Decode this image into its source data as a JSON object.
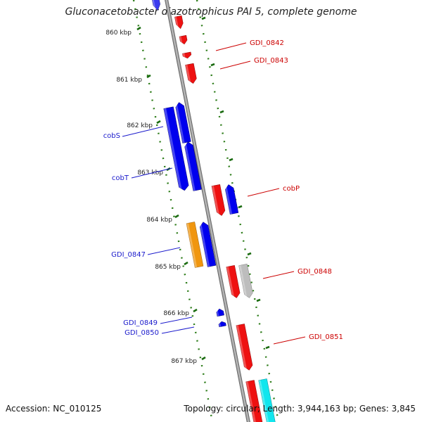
{
  "title": "Gluconacetobacter diazotrophicus PAI 5, complete genome",
  "footer": {
    "accession": "Accession: NC_010125",
    "topology": "Topology: circular; Length: 3,944,163 bp; Genes: 3,845"
  },
  "scale": {
    "ticks": [
      "860 kbp",
      "861 kbp",
      "862 kbp",
      "863 kbp",
      "864 kbp",
      "865 kbp",
      "866 kbp",
      "867 kbp"
    ]
  },
  "colors": {
    "backbone": "#8a8a8a",
    "ruler": "#2e7d1a",
    "forward_label": "#1a1acc",
    "reverse_label": "#cc0000"
  },
  "genes": [
    {
      "name": "",
      "color": "#3a3aee",
      "strand": "+"
    },
    {
      "name": "",
      "color": "#ee1111",
      "strand": "-"
    },
    {
      "name": "",
      "color": "#ee1111",
      "strand": "-"
    },
    {
      "name": "GDI_0842",
      "color": "#ee1111",
      "strand": "-"
    },
    {
      "name": "GDI_0843",
      "color": "#ee1111",
      "strand": "-"
    },
    {
      "name": "cobS",
      "color": "#0000ee",
      "strand": "-"
    },
    {
      "name": "",
      "color": "#0000ee",
      "strand": "+"
    },
    {
      "name": "cobT",
      "color": "#0000ee",
      "strand": "+"
    },
    {
      "name": "cobP",
      "color": "#ee1111",
      "strand": "-"
    },
    {
      "name": "",
      "color": "#0000ee",
      "strand": "+"
    },
    {
      "name": "GDI_0847",
      "color": "#f0960f",
      "strand": "-"
    },
    {
      "name": "",
      "color": "#0000ee",
      "strand": "+"
    },
    {
      "name": "GDI_0848",
      "color": "#ee1111",
      "strand": "-"
    },
    {
      "name": "",
      "color": "#bdbdbd",
      "strand": "-"
    },
    {
      "name": "GDI_0849",
      "color": "#0000ee",
      "strand": "+"
    },
    {
      "name": "GDI_0850",
      "color": "#0000ee",
      "strand": "+"
    },
    {
      "name": "GDI_0851",
      "color": "#ee1111",
      "strand": "-"
    },
    {
      "name": "",
      "color": "#ee1111",
      "strand": "-"
    },
    {
      "name": "",
      "color": "#11e6ee",
      "strand": "-"
    }
  ]
}
